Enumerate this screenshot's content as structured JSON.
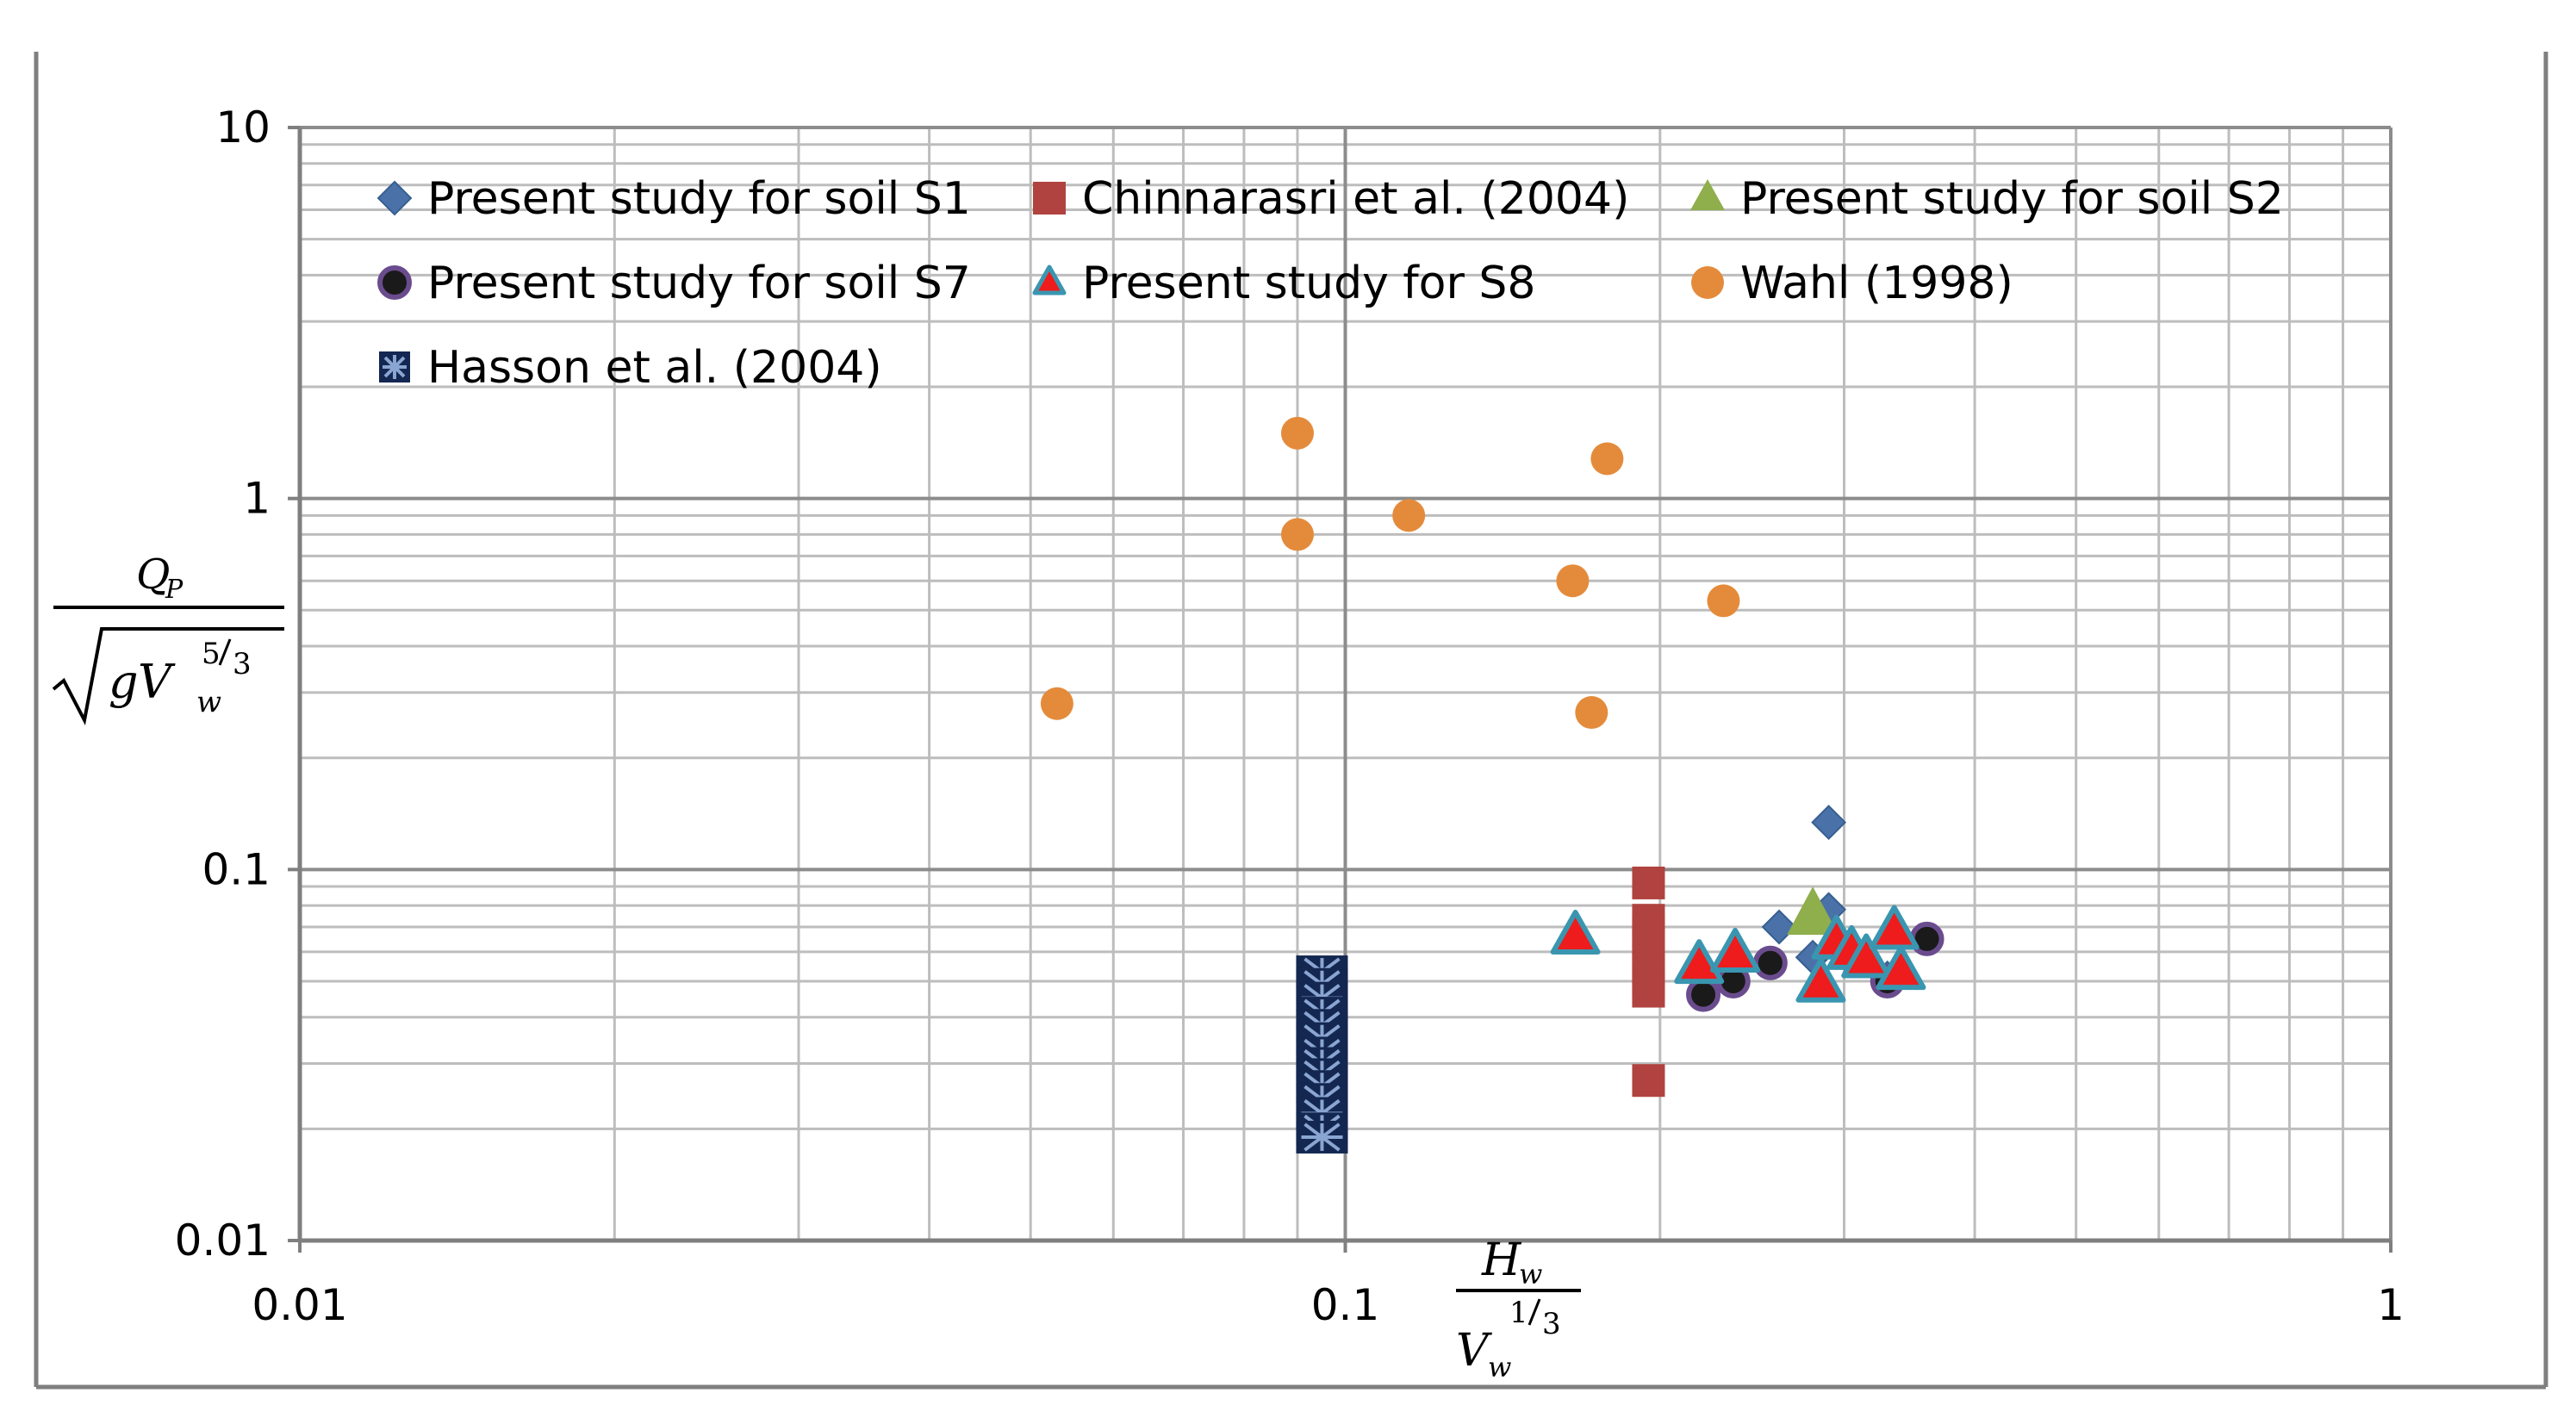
{
  "chart_data": {
    "type": "scatter",
    "title": "",
    "xscale": "log",
    "yscale": "log",
    "xlim": [
      0.01,
      1
    ],
    "ylim": [
      0.01,
      10
    ],
    "xlabel": {
      "numerator": "H",
      "numerator_sub": "w",
      "denominator": "V",
      "denominator_sub": "w",
      "exp_num": "1",
      "exp_den": "3"
    },
    "ylabel": {
      "numerator": "Q",
      "numerator_sub": "P",
      "radicand_g": "g",
      "radicand_v": "V",
      "radicand_sub": "w",
      "exp_num": "5",
      "exp_den": "3"
    },
    "x_ticks": [
      "0.01",
      "0.1",
      "1"
    ],
    "y_ticks": [
      "0.01",
      "0.1",
      "1",
      "10"
    ],
    "grid": true,
    "legend_position": "top-left inside",
    "series": [
      {
        "name": "Present study for soil S1",
        "marker": "diamond",
        "color": "#4a72a8",
        "points": [
          [
            0.26,
            0.07
          ],
          [
            0.29,
            0.078
          ],
          [
            0.29,
            0.134
          ],
          [
            0.3,
            0.061
          ],
          [
            0.33,
            0.051
          ],
          [
            0.28,
            0.058
          ]
        ]
      },
      {
        "name": "Chinnarasri et al. (2004)",
        "marker": "square",
        "color": "#b0433f",
        "points": [
          [
            0.195,
            0.092
          ],
          [
            0.195,
            0.073
          ],
          [
            0.195,
            0.068
          ],
          [
            0.195,
            0.063
          ],
          [
            0.195,
            0.058
          ],
          [
            0.195,
            0.054
          ],
          [
            0.195,
            0.05
          ],
          [
            0.195,
            0.047
          ],
          [
            0.195,
            0.027
          ]
        ]
      },
      {
        "name": "Present study for soil S2",
        "marker": "triangle",
        "color": "#8fae4c",
        "points": [
          [
            0.28,
            0.075
          ]
        ]
      },
      {
        "name": "Present study for soil S7",
        "marker": "circle-dark",
        "color": "#1a1a1a",
        "edge": "#6a4c8e",
        "points": [
          [
            0.22,
            0.046
          ],
          [
            0.235,
            0.05
          ],
          [
            0.255,
            0.056
          ],
          [
            0.33,
            0.05
          ],
          [
            0.36,
            0.065
          ]
        ]
      },
      {
        "name": "Present study for S8",
        "marker": "triangle-red",
        "color": "#ee1c1c",
        "edge": "#3a96b0",
        "points": [
          [
            0.166,
            0.066
          ],
          [
            0.218,
            0.055
          ],
          [
            0.236,
            0.059
          ],
          [
            0.285,
            0.049
          ],
          [
            0.295,
            0.064
          ],
          [
            0.305,
            0.06
          ],
          [
            0.315,
            0.057
          ],
          [
            0.335,
            0.068
          ],
          [
            0.34,
            0.053
          ]
        ]
      },
      {
        "name": "Wahl (1998)",
        "marker": "circle",
        "color": "#e48b3b",
        "points": [
          [
            0.053,
            0.28
          ],
          [
            0.09,
            1.5
          ],
          [
            0.09,
            0.8
          ],
          [
            0.115,
            0.9
          ],
          [
            0.165,
            0.6
          ],
          [
            0.172,
            0.265
          ],
          [
            0.178,
            1.28
          ],
          [
            0.23,
            0.53
          ]
        ]
      },
      {
        "name": "Hasson et al. (2004)",
        "marker": "asterisk-box",
        "color": "#132750",
        "fill2": "#8aa5d2",
        "points": [
          [
            0.095,
            0.053
          ],
          [
            0.095,
            0.049
          ],
          [
            0.095,
            0.045
          ],
          [
            0.095,
            0.041
          ],
          [
            0.095,
            0.038
          ],
          [
            0.095,
            0.035
          ],
          [
            0.095,
            0.032
          ],
          [
            0.095,
            0.03
          ],
          [
            0.095,
            0.028
          ],
          [
            0.095,
            0.026
          ],
          [
            0.095,
            0.024
          ],
          [
            0.095,
            0.022
          ],
          [
            0.095,
            0.02
          ],
          [
            0.095,
            0.019
          ]
        ]
      }
    ]
  }
}
